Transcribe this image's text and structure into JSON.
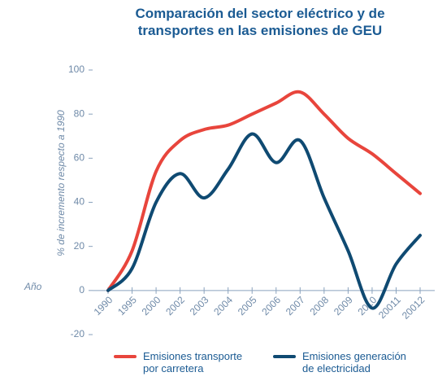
{
  "chart_data": {
    "type": "line",
    "title": "Comparación del sector eléctrico y de transportes en las emisiones de GEU",
    "ylabel": "% de incremento respecto a 1990",
    "xlabel": "Año",
    "categories": [
      "1990",
      "1995",
      "2000",
      "2002",
      "2003",
      "2004",
      "2005",
      "2006",
      "2007",
      "2008",
      "2009",
      "2010",
      "20011",
      "20012"
    ],
    "series": [
      {
        "name": "Emisiones transporte por carretera",
        "color": "#e8453c",
        "values": [
          0,
          18,
          54,
          68,
          73,
          75,
          80,
          85,
          90,
          80,
          69,
          62,
          53,
          44
        ]
      },
      {
        "name": "Emisiones generación de electricidad",
        "color": "#0f4a72",
        "values": [
          0,
          10,
          40,
          53,
          42,
          55,
          71,
          58,
          68,
          42,
          18,
          -8,
          12,
          25
        ]
      }
    ],
    "ylim": [
      -20,
      100
    ],
    "yticks": [
      -20,
      0,
      20,
      40,
      60,
      80,
      100
    ]
  }
}
